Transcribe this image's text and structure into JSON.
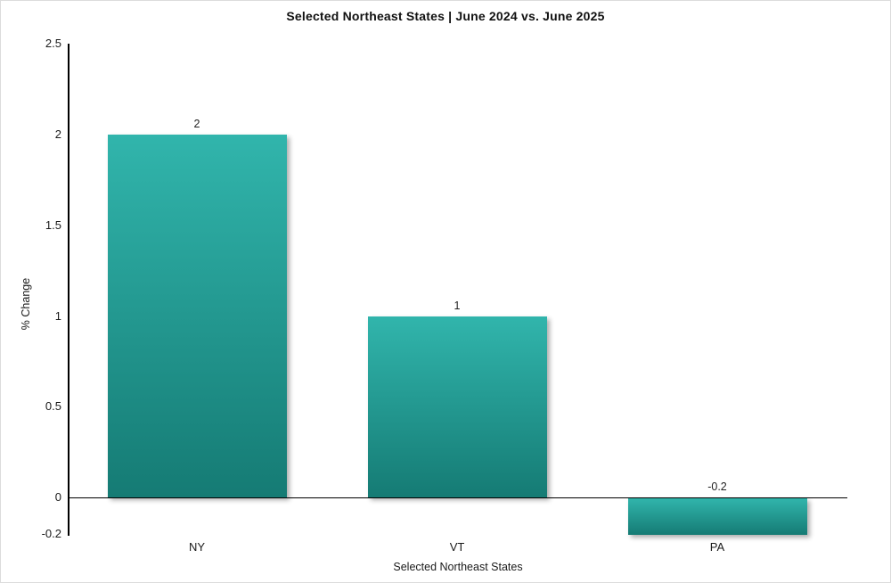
{
  "page": {
    "background": "#ffffff"
  },
  "chart_data": {
    "type": "bar",
    "title": "Selected Northeast States | June 2024 vs. June 2025",
    "xlabel": "Selected Northeast States",
    "ylabel": "% Change",
    "categories": [
      "NY",
      "VT",
      "PA"
    ],
    "values": [
      2,
      1,
      -0.2
    ],
    "value_labels": [
      "2",
      "1",
      "-0.2"
    ],
    "y_ticks": [
      "2.5",
      "2",
      "1.5",
      "1",
      "0.5",
      "0",
      "-0.2"
    ],
    "ylim": [
      -0.2,
      2.5
    ],
    "grid": false,
    "legend": false,
    "baseline": 0,
    "colors": {
      "bar_gradient_top": "#31b5ac",
      "bar_gradient_bottom": "#157b74",
      "axis": "#000000",
      "text": "#1a1a1a"
    }
  }
}
